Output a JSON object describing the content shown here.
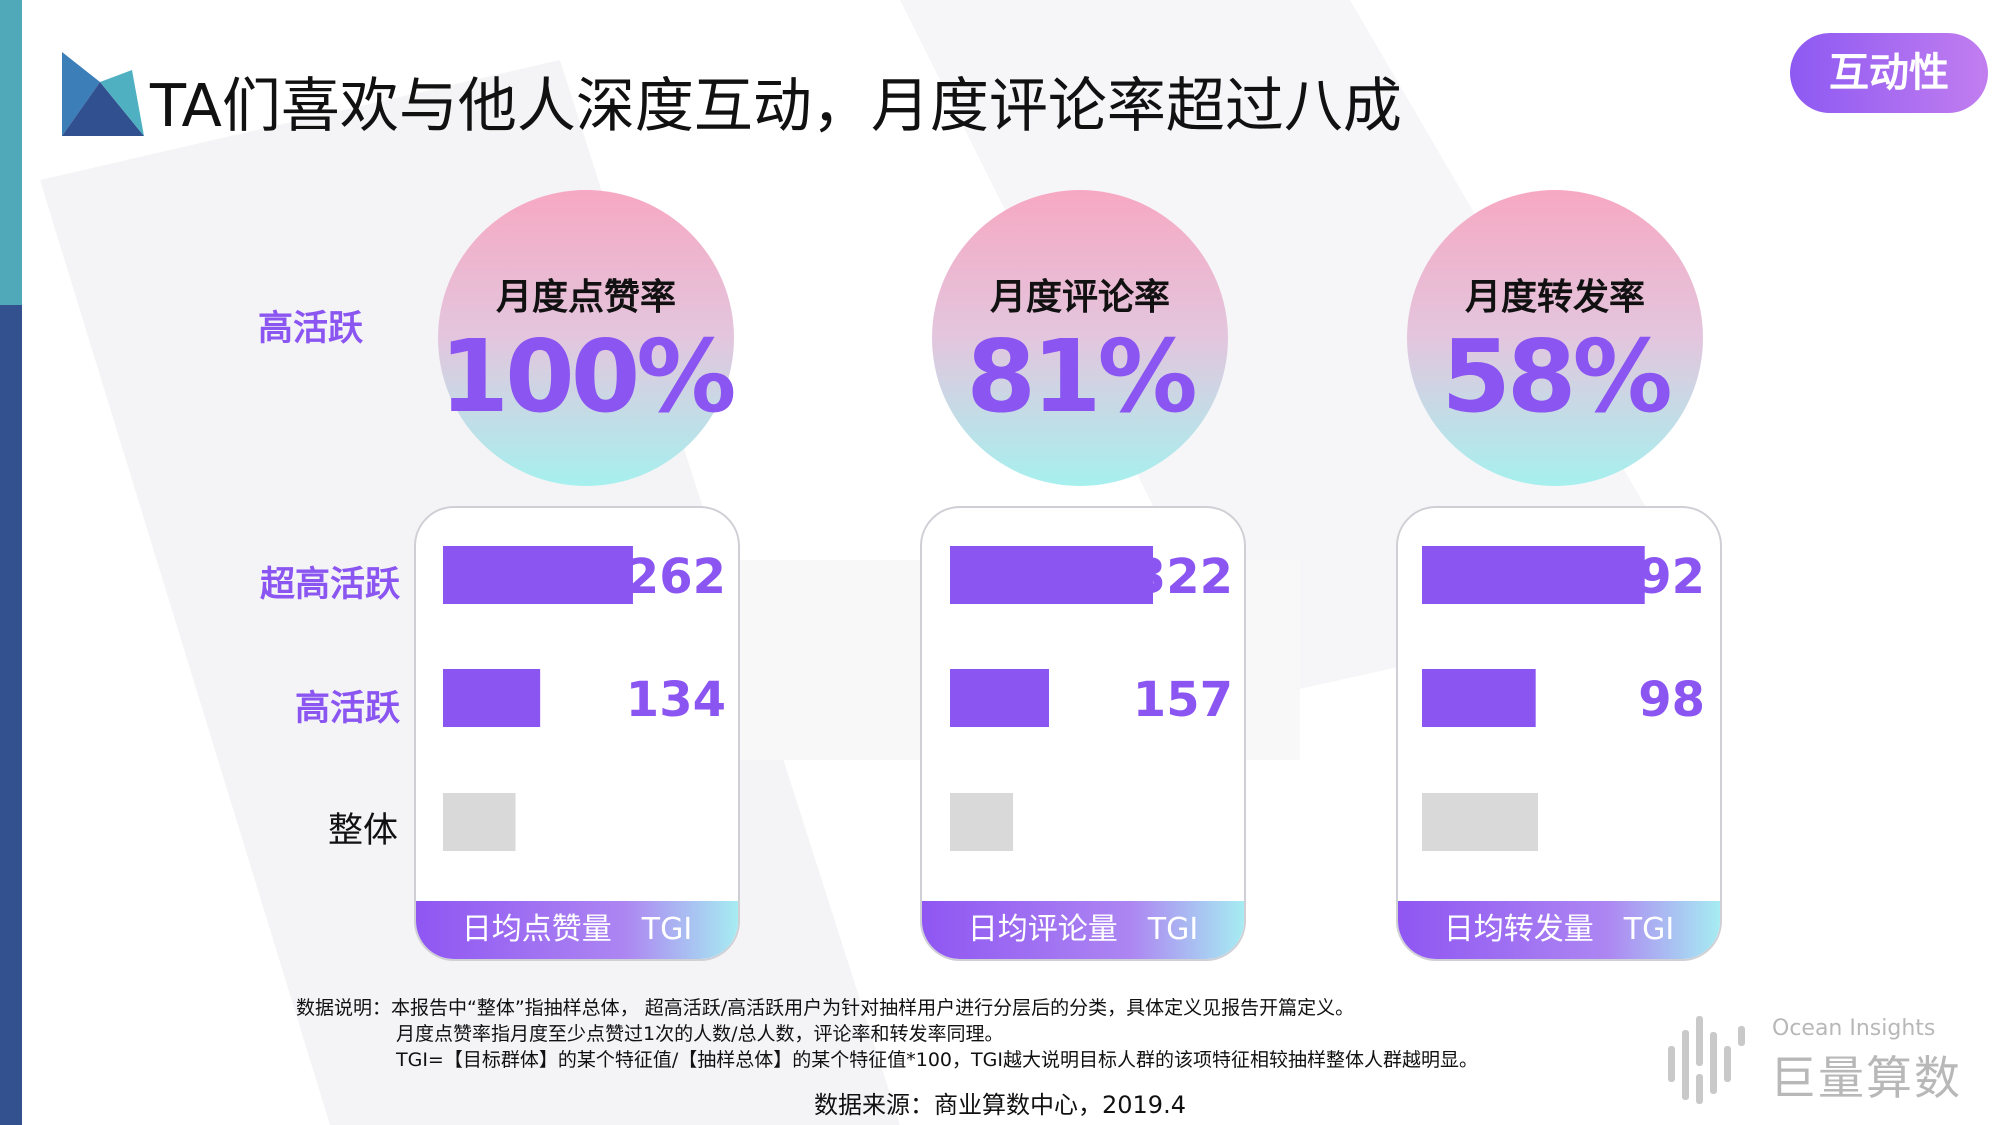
{
  "title": "TA们喜欢与他人深度互动，月度评论率超过八成",
  "tag": "互动性",
  "top_row_label": "高活跃",
  "rows": [
    {
      "label": "超高活跃",
      "highlight": true
    },
    {
      "label": "高活跃",
      "highlight": true
    },
    {
      "label": "整体",
      "highlight": false
    }
  ],
  "colors": {
    "accent": "#8b55f2",
    "overall_bar": "#d9d9d9",
    "circle_top": "#f7a8c2",
    "circle_bottom": "#a6f0ee"
  },
  "chart_data": [
    {
      "type": "bar",
      "rate_label": "月度点赞率",
      "rate_value": "100%",
      "categories": [
        "超高活跃",
        "高活跃",
        "整体"
      ],
      "values": [
        262,
        134,
        100
      ],
      "value_labels": [
        "262",
        "134",
        ""
      ],
      "xlabel": "日均点赞量　TGI",
      "xlim": [
        0,
        400
      ]
    },
    {
      "type": "bar",
      "rate_label": "月度评论率",
      "rate_value": "81%",
      "categories": [
        "超高活跃",
        "高活跃",
        "整体"
      ],
      "values": [
        322,
        157,
        100
      ],
      "value_labels": [
        "322",
        "157",
        ""
      ],
      "xlabel": "日均评论量　TGI",
      "xlim": [
        0,
        460
      ]
    },
    {
      "type": "bar",
      "rate_label": "月度转发率",
      "rate_value": "58%",
      "categories": [
        "超高活跃",
        "高活跃",
        "整体"
      ],
      "values": [
        192,
        98,
        100
      ],
      "value_labels": [
        "192",
        "98",
        ""
      ],
      "xlabel": "日均转发量　TGI",
      "xlim": [
        0,
        250
      ]
    }
  ],
  "notes": {
    "line1": "数据说明：本报告中“整体”指抽样总体， 超高活跃/高活跃用户为针对抽样用户进行分层后的分类，具体定义见报告开篇定义。",
    "line2": "月度点赞率指月度至少点赞过1次的人数/总人数，评论率和转发率同理。",
    "line3": "TGI=【目标群体】的某个特征值/【抽样总体】的某个特征值*100，TGI越大说明目标人群的该项特征相较抽样整体人群越明显。"
  },
  "source": "数据来源：商业算数中心，2019.4",
  "brand": {
    "en": "Ocean Insights",
    "cn": "巨量算数"
  }
}
